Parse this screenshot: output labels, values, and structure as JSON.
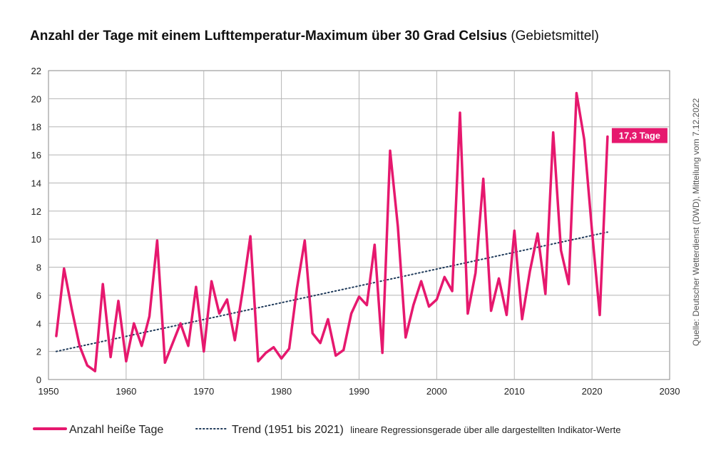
{
  "title": {
    "main": "Anzahl der Tage mit einem Lufttemperatur-Maximum über 30 Grad Celsius",
    "sub": "(Gebietsmittel)"
  },
  "source": "Quelle: Deutscher Wetterdienst (DWD), Mitteilung vom 7.12.2022",
  "colors": {
    "series": "#e6186e",
    "trend": "#1f3a5a",
    "grid": "#b5b5b5"
  },
  "chart_data": {
    "type": "line",
    "xlim": [
      1950,
      2030
    ],
    "ylim": [
      0,
      22
    ],
    "xticks": [
      1950,
      1960,
      1970,
      1980,
      1990,
      2000,
      2010,
      2020,
      2030
    ],
    "yticks": [
      0,
      2,
      4,
      6,
      8,
      10,
      12,
      14,
      16,
      18,
      20,
      22
    ],
    "grid": true,
    "series": [
      {
        "name": "Anzahl heiße Tage",
        "x": [
          1951,
          1952,
          1953,
          1954,
          1955,
          1956,
          1957,
          1958,
          1959,
          1960,
          1961,
          1962,
          1963,
          1964,
          1965,
          1966,
          1967,
          1968,
          1969,
          1970,
          1971,
          1972,
          1973,
          1974,
          1975,
          1976,
          1977,
          1978,
          1979,
          1980,
          1981,
          1982,
          1983,
          1984,
          1985,
          1986,
          1987,
          1988,
          1989,
          1990,
          1991,
          1992,
          1993,
          1994,
          1995,
          1996,
          1997,
          1998,
          1999,
          2000,
          2001,
          2002,
          2003,
          2004,
          2005,
          2006,
          2007,
          2008,
          2009,
          2010,
          2011,
          2012,
          2013,
          2014,
          2015,
          2016,
          2017,
          2018,
          2019,
          2020,
          2021,
          2022
        ],
        "values": [
          3.1,
          7.9,
          5.0,
          2.4,
          1.0,
          0.6,
          6.8,
          1.6,
          5.6,
          1.3,
          4.0,
          2.4,
          4.5,
          9.9,
          1.2,
          2.6,
          4.0,
          2.4,
          6.6,
          2.0,
          7.0,
          4.7,
          5.7,
          2.8,
          6.3,
          10.2,
          1.3,
          1.9,
          2.3,
          1.5,
          2.2,
          6.5,
          9.9,
          3.3,
          2.6,
          4.3,
          1.7,
          2.1,
          4.7,
          5.9,
          5.3,
          9.6,
          1.9,
          16.3,
          10.9,
          3.0,
          5.3,
          7.0,
          5.2,
          5.7,
          7.3,
          6.3,
          19.0,
          4.7,
          7.6,
          14.3,
          4.9,
          7.2,
          4.6,
          10.6,
          4.3,
          7.7,
          10.4,
          6.1,
          17.6,
          9.2,
          6.8,
          20.4,
          17.1,
          10.6,
          4.6,
          17.3
        ]
      },
      {
        "name": "Trend (1951 bis 2021)",
        "x": [
          1951,
          2022
        ],
        "values": [
          2.0,
          10.5
        ]
      }
    ],
    "annotations": [
      {
        "x": 2022,
        "y": 17.3,
        "text": "17,3 Tage"
      }
    ],
    "legend": {
      "position": "bottom",
      "items": [
        {
          "label": "Anzahl heiße Tage",
          "note": ""
        },
        {
          "label": "Trend (1951 bis 2021)",
          "note": "lineare Regressionsgerade über alle dargestellten Indikator-Werte"
        }
      ]
    }
  }
}
